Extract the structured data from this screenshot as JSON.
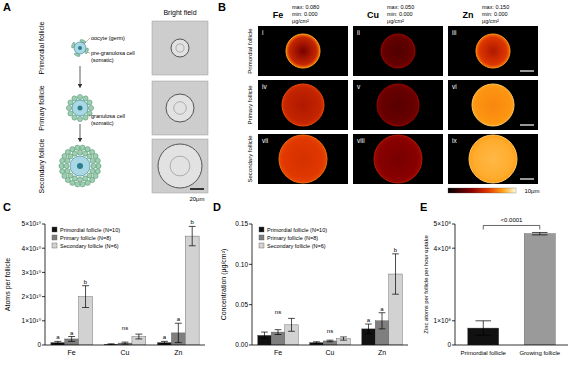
{
  "panel_labels": [
    "A",
    "B",
    "C",
    "D",
    "E"
  ],
  "panel_a": {
    "column_title": "Bright field",
    "rows": [
      {
        "label": "Primordial follicle",
        "notes": [
          [
            "oocyte (germ)"
          ],
          [
            "pre-granulosa cell",
            "(somatic)"
          ]
        ]
      },
      {
        "label": "Primary follicle",
        "notes": [
          [
            "granulosa cell",
            "(somatic)"
          ]
        ]
      },
      {
        "label": "Secondary follicle",
        "notes": []
      }
    ],
    "scale_bar": "20μm"
  },
  "panel_b": {
    "columns": [
      {
        "element": "Fe",
        "max": "max: 0.080",
        "min": "min: 0.000",
        "unit": "μg/cm²"
      },
      {
        "element": "Cu",
        "max": "max: 0.050",
        "min": "min: 0.000",
        "unit": "μg/cm²"
      },
      {
        "element": "Zn",
        "max": "max: 0.150",
        "min": "min: 0.000",
        "unit": "μg/cm²"
      }
    ],
    "rows": [
      "Primordial follicle",
      "Primary follicle",
      "Secondary follicle"
    ],
    "numerals": [
      "i",
      "ii",
      "iii",
      "iv",
      "v",
      "vi",
      "vii",
      "viii",
      "ix"
    ],
    "scale_bar": "10μm"
  },
  "chart_data": [
    {
      "type": "bar",
      "y_label": "Atoms per follicle",
      "categories": [
        "Fe",
        "Cu",
        "Zn"
      ],
      "series": [
        {
          "name": "Primordial follicle (N=10)",
          "color": "#111111",
          "values": [
            1000000000.0,
            300000000.0,
            1000000000.0
          ],
          "errors": [
            500000000.0,
            200000000.0,
            500000000.0
          ],
          "letters": [
            "a",
            null,
            "a"
          ]
        },
        {
          "name": "Primary follicle (N=8)",
          "color": "#7f7f7f",
          "values": [
            2500000000.0,
            800000000.0,
            5000000000.0
          ],
          "errors": [
            1000000000.0,
            400000000.0,
            4000000000.0
          ],
          "letters": [
            "a",
            null,
            "a"
          ]
        },
        {
          "name": "Secondary follicle (N=6)",
          "color": "#d2d2d2",
          "values": [
            20000000000.0,
            3500000000.0,
            45000000000.0
          ],
          "errors": [
            4500000000.0,
            1000000000.0,
            4000000000.0
          ],
          "letters": [
            "b",
            null,
            "b"
          ]
        }
      ],
      "group_annotations": [
        null,
        "ns",
        null
      ],
      "ylim": [
        0,
        50000000000.0
      ],
      "yticks": [
        0,
        {
          "value": 10000000000.0,
          "label": "1×10¹⁰"
        },
        {
          "value": 20000000000.0,
          "label": "2×10¹⁰"
        },
        {
          "value": 30000000000.0,
          "label": "3×10¹⁰"
        },
        {
          "value": 40000000000.0,
          "label": "4×10¹⁰"
        },
        {
          "value": 50000000000.0,
          "label": "5×10¹⁰"
        }
      ],
      "legend": "upper left"
    },
    {
      "type": "bar",
      "y_label": "Concentration (μg/cm²)",
      "categories": [
        "Fe",
        "Cu",
        "Zn"
      ],
      "series": [
        {
          "name": "Primordial follicle (N=10)",
          "color": "#111111",
          "values": [
            0.012,
            0.003,
            0.02
          ],
          "errors": [
            0.004,
            0.001,
            0.006
          ],
          "letters": [
            null,
            null,
            "a"
          ]
        },
        {
          "name": "Primary follicle (N=8)",
          "color": "#7f7f7f",
          "values": [
            0.016,
            0.005,
            0.03
          ],
          "errors": [
            0.003,
            0.001,
            0.01
          ],
          "letters": [
            null,
            null,
            "a"
          ]
        },
        {
          "name": "Secondary follicle (N=6)",
          "color": "#d2d2d2",
          "values": [
            0.025,
            0.008,
            0.088
          ],
          "errors": [
            0.008,
            0.002,
            0.025
          ],
          "letters": [
            null,
            null,
            "b"
          ]
        }
      ],
      "group_annotations": [
        "ns",
        "ns",
        null
      ],
      "ylim": [
        0,
        0.15
      ],
      "yticks": [
        {
          "value": 0,
          "label": "0.00"
        },
        {
          "value": 0.05,
          "label": "0.05"
        },
        {
          "value": 0.1,
          "label": "0.10"
        },
        {
          "value": 0.15,
          "label": "0.15"
        }
      ],
      "legend": "upper left"
    },
    {
      "type": "bar",
      "y_label": "Zinc atoms per follicle per hour uptake",
      "categories": [
        "Primordial follicle",
        "Growing follicle"
      ],
      "values": [
        70000000.0,
        460000000.0
      ],
      "errors": [
        30000000.0,
        5000000.0
      ],
      "colors": [
        "#111111",
        "#9a9a9a"
      ],
      "annotation": "<0.0001",
      "ylim": [
        0,
        500000000.0
      ],
      "yticks": [
        0,
        {
          "value": 100000000.0,
          "label": "1×10⁸"
        },
        {
          "value": 400000000.0,
          "label": "4×10⁸"
        },
        {
          "value": 500000000.0,
          "label": "5×10⁸"
        }
      ]
    }
  ]
}
